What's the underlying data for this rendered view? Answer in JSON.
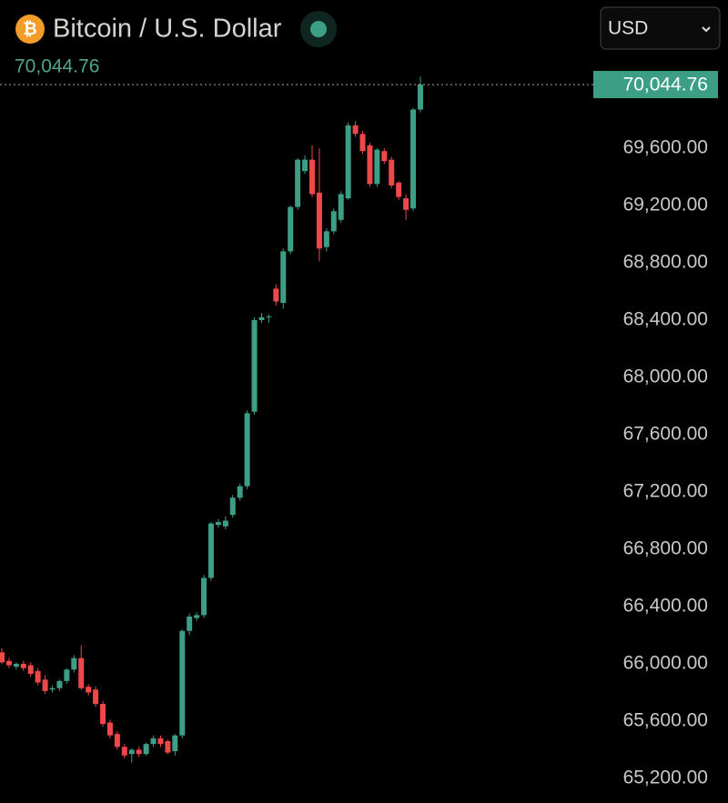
{
  "chart_data": {
    "type": "candlestick",
    "icon": "₿",
    "title": "Bitcoin / U.S. Dollar",
    "currency": "USD",
    "last_price": {
      "value": 70044.76,
      "label": "70,044.76"
    },
    "up_color": "#3d9e86",
    "down_color": "#f0474b",
    "ylim": [
      65060,
      70635
    ],
    "yticks": [
      {
        "value": 65200,
        "label": "65,200.00"
      },
      {
        "value": 65600,
        "label": "65,600.00"
      },
      {
        "value": 66000,
        "label": "66,000.00"
      },
      {
        "value": 66400,
        "label": "66,400.00"
      },
      {
        "value": 66800,
        "label": "66,800.00"
      },
      {
        "value": 67200,
        "label": "67,200.00"
      },
      {
        "value": 67600,
        "label": "67,600.00"
      },
      {
        "value": 68000,
        "label": "68,000.00"
      },
      {
        "value": 68400,
        "label": "68,400.00"
      },
      {
        "value": 68800,
        "label": "68,800.00"
      },
      {
        "value": 69200,
        "label": "69,200.00"
      },
      {
        "value": 69600,
        "label": "69,600.00"
      }
    ],
    "open": [
      66080,
      66020,
      65980,
      66000,
      65990,
      65950,
      65890,
      65820,
      65830,
      65880,
      65960,
      66040,
      65840,
      65820,
      65720,
      65590,
      65510,
      65420,
      65370,
      65400,
      65370,
      65440,
      65480,
      65460,
      65390,
      65500,
      66230,
      66320,
      66340,
      66600,
      66970,
      66960,
      67040,
      67160,
      67240,
      67760,
      68400,
      68420,
      68620,
      68520,
      68880,
      69190,
      69440,
      69520,
      69290,
      68910,
      69020,
      69100,
      69250,
      69760,
      69700,
      69620,
      69350,
      69580,
      69520,
      69360,
      69250,
      69180,
      69870
    ],
    "high": [
      66110,
      66040,
      66010,
      66020,
      66010,
      65970,
      65920,
      65850,
      65890,
      65970,
      66060,
      66130,
      65860,
      65840,
      65740,
      65610,
      65530,
      65440,
      65410,
      65420,
      65450,
      65500,
      65500,
      65470,
      65510,
      66240,
      66350,
      66360,
      66620,
      66990,
      67010,
      67030,
      67180,
      67260,
      67770,
      68420,
      68450,
      68440,
      68650,
      68900,
      69200,
      69530,
      69550,
      69620,
      69600,
      69040,
      69180,
      69300,
      69780,
      69790,
      69720,
      69640,
      69600,
      69600,
      69540,
      69370,
      69280,
      69880,
      70100
    ],
    "low": [
      66000,
      65970,
      65960,
      65950,
      65910,
      65850,
      65790,
      65800,
      65810,
      65860,
      65940,
      65820,
      65780,
      65700,
      65560,
      65480,
      65400,
      65340,
      65310,
      65350,
      65360,
      65420,
      65420,
      65370,
      65360,
      65480,
      66200,
      66300,
      66320,
      66580,
      66950,
      66940,
      67020,
      67140,
      67220,
      67740,
      68380,
      68380,
      68500,
      68480,
      68860,
      69170,
      69420,
      69260,
      68810,
      68880,
      69000,
      69080,
      69240,
      69680,
      69560,
      69330,
      69330,
      69490,
      69320,
      69240,
      69100,
      69160,
      69850
    ],
    "close": [
      66010,
      65990,
      66000,
      65970,
      65930,
      65870,
      65810,
      65830,
      65880,
      65960,
      66040,
      65830,
      65800,
      65720,
      65580,
      65500,
      65420,
      65360,
      65400,
      65370,
      65440,
      65480,
      65440,
      65380,
      65500,
      66230,
      66330,
      66340,
      66600,
      66980,
      66990,
      67000,
      67160,
      67240,
      67750,
      68400,
      68420,
      68425,
      68530,
      68880,
      69190,
      69520,
      69520,
      69280,
      68900,
      69020,
      69160,
      69280,
      69760,
      69700,
      69580,
      69350,
      69590,
      69510,
      69340,
      69260,
      69170,
      69870,
      70045
    ]
  }
}
